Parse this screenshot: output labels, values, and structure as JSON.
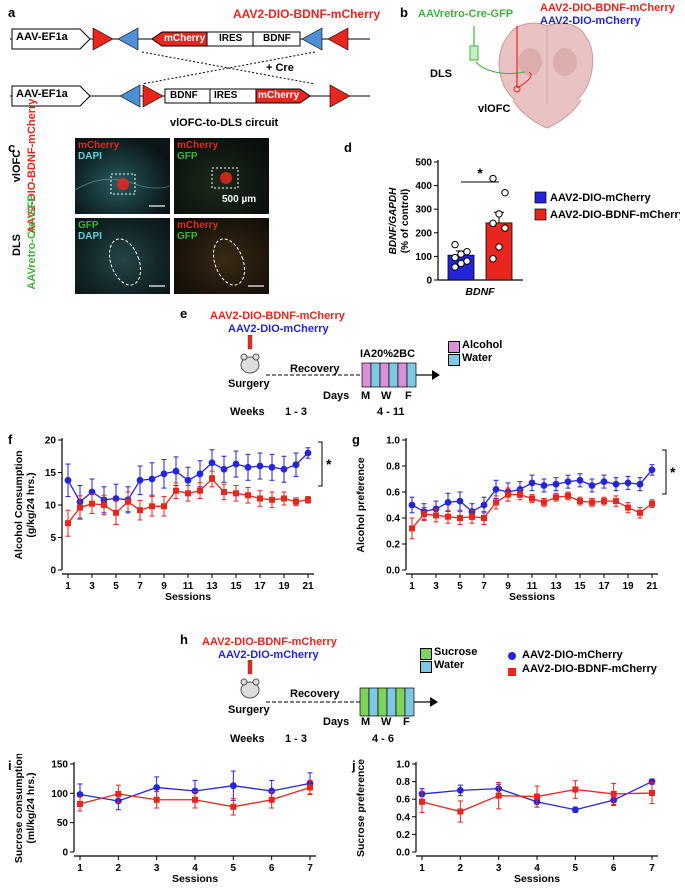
{
  "panels": {
    "a": {
      "letter": "a",
      "title": "AAV2-DIO-BDNF-mCherry",
      "promoter": "AAV-EF1a",
      "mcherry": "mCherry",
      "ires": "IRES",
      "bdnf": "BDNF",
      "cre_label": "+ Cre"
    },
    "b": {
      "letter": "b",
      "retro": "AAVretro-Cre-GFP",
      "bdnf_vec": "AAV2-DIO-BDNF-mCherry",
      "mch_vec": "AAV2-DIO-mCherry",
      "dls": "DLS",
      "vlofc": "vlOFC"
    },
    "c": {
      "letter": "c",
      "circuit_title": "vlOFC-to-DLS circuit",
      "row1_region": "vlOFC",
      "row1_virus": "AAV2-DIO-BDNF-mCherry",
      "row2_region": "DLS",
      "row2_virus": "AAVretro-Cre-GFP",
      "img1_l1": "mCherry",
      "img1_l2": "DAPI",
      "img2_l1": "mCherry",
      "img2_l2": "GFP",
      "img3_l1": "GFP",
      "img3_l2": "DAPI",
      "img4_l1": "mCherry",
      "img4_l2": "GFP",
      "scale": "500 µm"
    },
    "d": {
      "letter": "d",
      "star": "*",
      "xcat": "BDNF",
      "legend1": "AAV2-DIO-mCherry",
      "legend2": "AAV2-DIO-BDNF-mCherry"
    },
    "e": {
      "letter": "e",
      "vec1": "AAV2-DIO-BDNF-mCherry",
      "vec2": "AAV2-DIO-mCherry",
      "surgery": "Surgery",
      "recovery": "Recovery",
      "paradigm": "IA20%2BC",
      "leg1": "Alcohol",
      "leg2": "Water",
      "days": "Days",
      "m": "M",
      "w": "W",
      "f": "F",
      "weeks": "Weeks",
      "w1": "1 - 3",
      "w2": "4 - 11"
    },
    "f": {
      "letter": "f",
      "star": "*"
    },
    "g": {
      "letter": "g",
      "star": "*"
    },
    "h": {
      "letter": "h",
      "vec1": "AAV2-DIO-BDNF-mCherry",
      "vec2": "AAV2-DIO-mCherry",
      "surgery": "Surgery",
      "recovery": "Recovery",
      "leg1": "Sucrose",
      "leg2": "Water",
      "days": "Days",
      "m": "M",
      "w": "W",
      "f": "F",
      "weeks": "Weeks",
      "w1": "1 - 3",
      "w2": "4 - 6",
      "legend1": "AAV2-DIO-mCherry",
      "legend2": "AAV2-DIO-BDNF-mCherry"
    },
    "i": {
      "letter": "i"
    },
    "j": {
      "letter": "j"
    }
  },
  "colors": {
    "blue": "#2424d8",
    "red": "#e8261e",
    "alcohol": "#d98fd9",
    "water": "#7ec8e3",
    "sucrose": "#7ed35a",
    "brain": "#e9c3c3"
  },
  "chart_data": [
    {
      "id": "d",
      "type": "bar",
      "categories": [
        "AAV2-DIO-mCherry",
        "AAV2-DIO-BDNF-mCherry"
      ],
      "values": [
        105,
        242
      ],
      "errors": [
        18,
        45
      ],
      "points": [
        [
          55,
          70,
          80,
          95,
          110,
          120,
          150
        ],
        [
          90,
          140,
          220,
          240,
          280,
          370,
          430
        ]
      ],
      "ylabel": "BDNF/GAPDH (% of control)",
      "xlabel": "BDNF",
      "ylim": [
        0,
        500
      ],
      "yticks": [
        0,
        100,
        200,
        300,
        400,
        500
      ]
    },
    {
      "id": "f",
      "type": "line",
      "xlabel": "Sessions",
      "ylabel": "Alcohol Consumption (g/kg/24 hrs.)",
      "ylim": [
        0,
        20
      ],
      "yticks": [
        0,
        5,
        10,
        15,
        20
      ],
      "xticks": [
        1,
        3,
        5,
        7,
        9,
        11,
        13,
        15,
        17,
        19,
        21
      ],
      "x": [
        1,
        2,
        3,
        4,
        5,
        6,
        7,
        8,
        9,
        10,
        11,
        12,
        13,
        14,
        15,
        16,
        17,
        18,
        19,
        20,
        21
      ],
      "series": [
        {
          "name": "AAV2-DIO-mCherry",
          "values": [
            13.8,
            10.5,
            12.0,
            10.8,
            11.0,
            10.8,
            13.8,
            14.0,
            14.8,
            15.2,
            13.8,
            14.8,
            16.5,
            15.5,
            16.3,
            15.8,
            16.0,
            15.8,
            15.5,
            16.2,
            18.0
          ],
          "errors": [
            2.5,
            2.5,
            2.0,
            2.0,
            2.2,
            2.0,
            2.2,
            2.5,
            2.2,
            2.2,
            2.0,
            2.0,
            2.0,
            2.0,
            2.0,
            2.0,
            2.0,
            2.0,
            2.0,
            1.8,
            0.8
          ]
        },
        {
          "name": "AAV2-DIO-BDNF-mCherry",
          "values": [
            7.2,
            9.6,
            10.2,
            10.0,
            8.8,
            10.5,
            9.2,
            9.8,
            9.8,
            12.2,
            11.8,
            12.2,
            14.0,
            12.0,
            11.8,
            11.5,
            11.0,
            10.8,
            11.0,
            10.5,
            10.8
          ],
          "errors": [
            2.0,
            1.8,
            1.5,
            1.5,
            1.8,
            1.5,
            1.5,
            1.5,
            1.5,
            1.2,
            1.2,
            1.2,
            1.2,
            1.2,
            1.2,
            1.2,
            1.2,
            1.2,
            1.0,
            0.6,
            0.5
          ]
        }
      ]
    },
    {
      "id": "g",
      "type": "line",
      "xlabel": "Sessions",
      "ylabel": "Alcohol preference",
      "ylim": [
        0,
        1.0
      ],
      "yticks": [
        0.0,
        0.2,
        0.4,
        0.6,
        0.8,
        1.0
      ],
      "xticks": [
        1,
        3,
        5,
        7,
        9,
        11,
        13,
        15,
        17,
        19,
        21
      ],
      "x": [
        1,
        2,
        3,
        4,
        5,
        6,
        7,
        8,
        9,
        10,
        11,
        12,
        13,
        14,
        15,
        16,
        17,
        18,
        19,
        20,
        21
      ],
      "series": [
        {
          "name": "AAV2-DIO-mCherry",
          "values": [
            0.5,
            0.45,
            0.47,
            0.52,
            0.53,
            0.45,
            0.5,
            0.62,
            0.6,
            0.62,
            0.67,
            0.65,
            0.66,
            0.68,
            0.69,
            0.65,
            0.68,
            0.66,
            0.67,
            0.66,
            0.77
          ],
          "errors": [
            0.06,
            0.06,
            0.06,
            0.07,
            0.07,
            0.06,
            0.06,
            0.07,
            0.07,
            0.06,
            0.06,
            0.05,
            0.05,
            0.05,
            0.05,
            0.05,
            0.05,
            0.05,
            0.05,
            0.05,
            0.04
          ]
        },
        {
          "name": "AAV2-DIO-BDNF-mCherry",
          "values": [
            0.32,
            0.43,
            0.42,
            0.41,
            0.4,
            0.41,
            0.4,
            0.52,
            0.58,
            0.58,
            0.55,
            0.52,
            0.56,
            0.57,
            0.53,
            0.52,
            0.53,
            0.53,
            0.48,
            0.44,
            0.51
          ],
          "errors": [
            0.08,
            0.05,
            0.05,
            0.05,
            0.05,
            0.05,
            0.05,
            0.05,
            0.05,
            0.04,
            0.03,
            0.03,
            0.03,
            0.03,
            0.03,
            0.03,
            0.03,
            0.04,
            0.04,
            0.04,
            0.03
          ]
        }
      ]
    },
    {
      "id": "i",
      "type": "line",
      "xlabel": "Sessions",
      "ylabel": "Sucrose consumption (ml/kg/24 hrs.)",
      "ylim": [
        0,
        150
      ],
      "yticks": [
        0,
        50,
        100,
        150
      ],
      "xticks": [
        1,
        2,
        3,
        4,
        5,
        6,
        7
      ],
      "x": [
        1,
        2,
        3,
        4,
        5,
        6,
        7
      ],
      "series": [
        {
          "name": "AAV2-DIO-mCherry",
          "values": [
            98,
            87,
            110,
            104,
            113,
            104,
            117
          ],
          "errors": [
            18,
            15,
            18,
            18,
            25,
            18,
            18
          ]
        },
        {
          "name": "AAV2-DIO-BDNF-mCherry",
          "values": [
            82,
            99,
            89,
            89,
            77,
            89,
            110
          ],
          "errors": [
            12,
            15,
            14,
            14,
            14,
            14,
            12
          ]
        }
      ]
    },
    {
      "id": "j",
      "type": "line",
      "xlabel": "Sessions",
      "ylabel": "Sucrose preference",
      "ylim": [
        0,
        1.0
      ],
      "yticks": [
        0.0,
        0.2,
        0.4,
        0.6,
        0.8,
        1.0
      ],
      "xticks": [
        1,
        2,
        3,
        4,
        5,
        6,
        7
      ],
      "x": [
        1,
        2,
        3,
        4,
        5,
        6,
        7
      ],
      "series": [
        {
          "name": "AAV2-DIO-mCherry",
          "values": [
            0.66,
            0.7,
            0.72,
            0.57,
            0.48,
            0.59,
            0.8
          ],
          "errors": [
            0.06,
            0.06,
            0.05,
            0.06,
            0.03,
            0.06,
            0.03
          ]
        },
        {
          "name": "AAV2-DIO-BDNF-mCherry",
          "values": [
            0.57,
            0.46,
            0.64,
            0.63,
            0.71,
            0.66,
            0.67
          ],
          "errors": [
            0.12,
            0.12,
            0.15,
            0.12,
            0.1,
            0.12,
            0.12
          ]
        }
      ]
    }
  ]
}
